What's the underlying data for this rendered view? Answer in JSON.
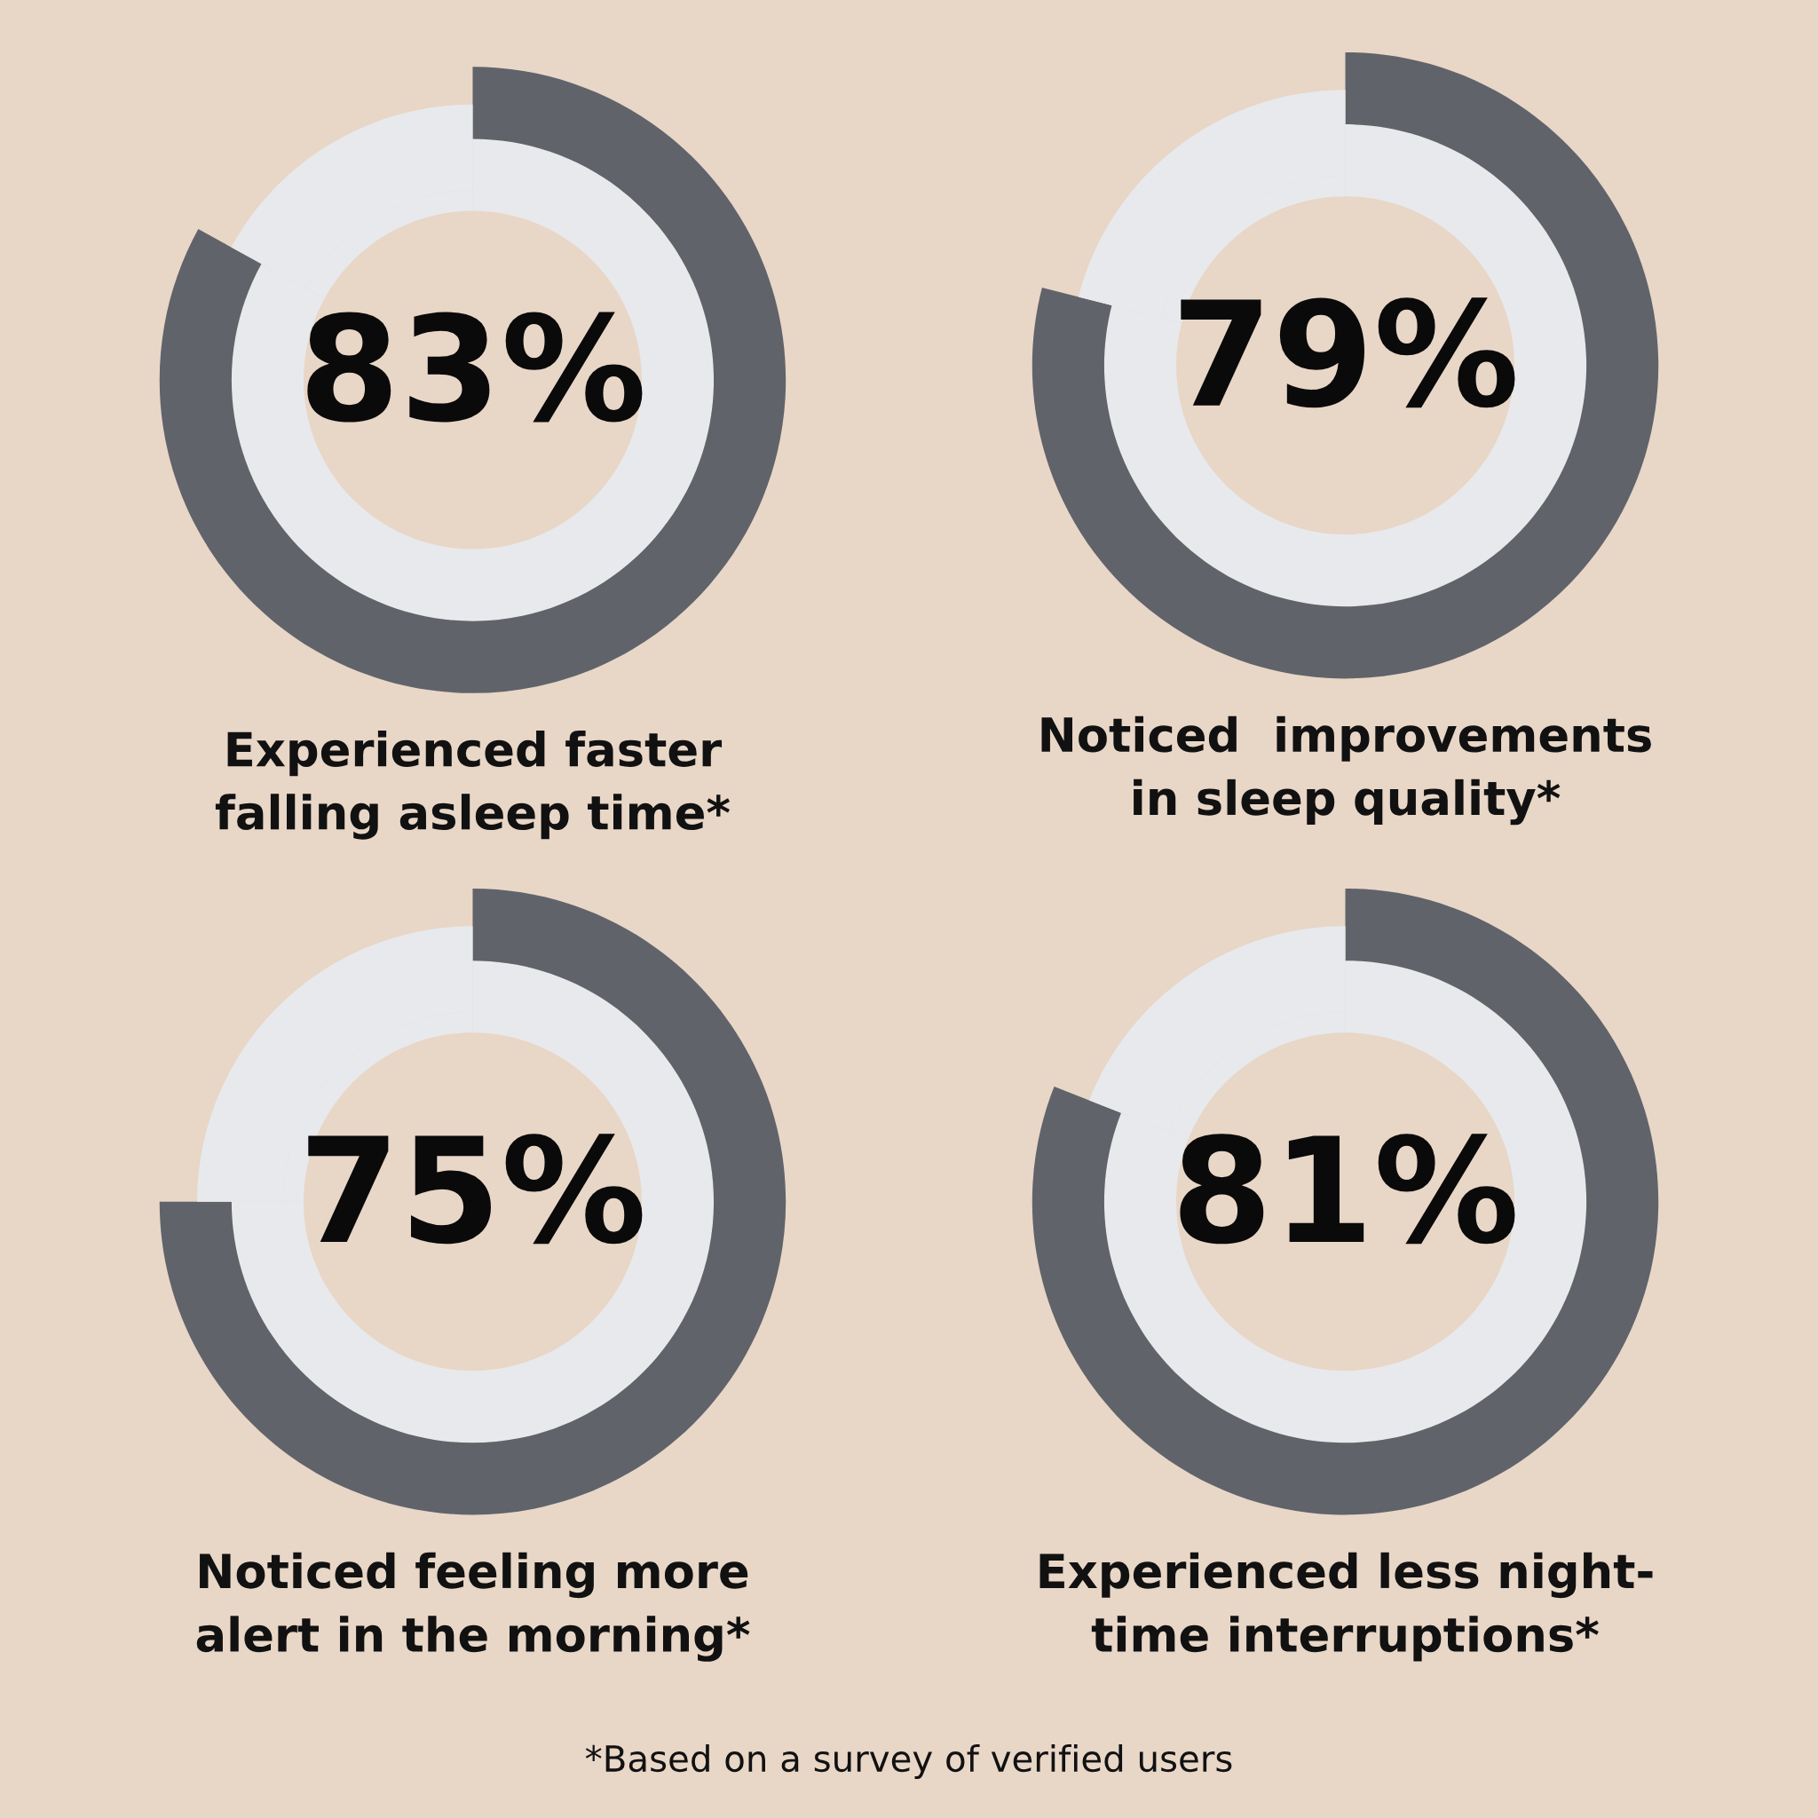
{
  "chart_data": [
    {
      "type": "donut",
      "title": "Experienced faster\nfalling asleep time*",
      "categories": [
        null,
        null
      ],
      "values": [
        83,
        17
      ],
      "colors": [
        "#60636a",
        "#e8e9ec"
      ],
      "value_labels": [
        "83%",
        null
      ]
    },
    {
      "type": "donut",
      "title": "Noticed  improvements\nin sleep quality*",
      "categories": [
        null,
        null
      ],
      "values": [
        79,
        21
      ],
      "colors": [
        "#60636a",
        "#e8e9ec"
      ],
      "value_labels": [
        "79%",
        null
      ]
    },
    {
      "type": "donut",
      "title": "Noticed feeling more\nalert in the morning*",
      "categories": [
        null,
        null
      ],
      "values": [
        75,
        25
      ],
      "colors": [
        "#60636a",
        "#e8e9ec"
      ],
      "value_labels": [
        "75%",
        null
      ]
    },
    {
      "type": "donut",
      "title": "Experienced less night-\ntime interruptions*",
      "categories": [
        null,
        null
      ],
      "values": [
        81,
        19
      ],
      "colors": [
        "#60636a",
        "#e8e9ec"
      ],
      "value_labels": [
        "81%",
        null
      ],
      "annotations": [
        "*Based on a survey of verified users"
      ]
    }
  ]
}
